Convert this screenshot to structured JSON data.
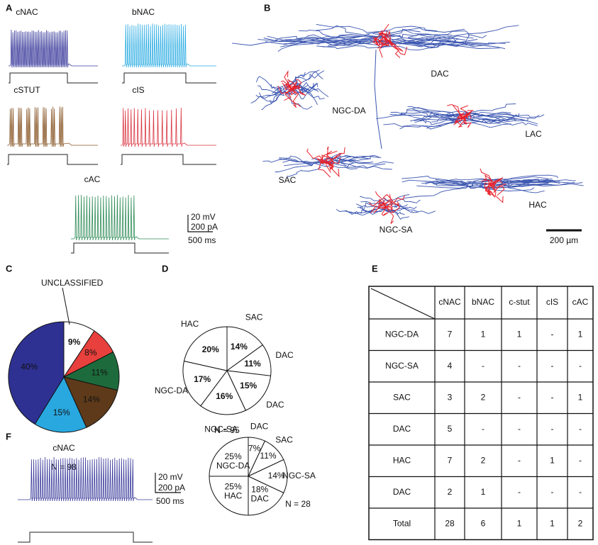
{
  "panel_letters": [
    "A",
    "B",
    "C",
    "D",
    "E",
    "F"
  ],
  "traces": {
    "labels": [
      "cNAC",
      "bNAC",
      "cSTUT",
      "cIS",
      "cAC"
    ],
    "scale": [
      "20 mV",
      "200 pA",
      "500 ms"
    ]
  },
  "morphologies": {
    "labels": [
      "DAC",
      "NGC-DA",
      "LAC",
      "SAC",
      "HAC",
      "NGC-SA"
    ],
    "scale": "200 µm"
  },
  "chart_data": [
    {
      "type": "pie",
      "categories": [
        "UNCLASSIFIED",
        null,
        null,
        null,
        null,
        null
      ],
      "values": [
        9,
        8,
        11,
        14,
        15,
        40
      ],
      "value_labels": [
        "9%",
        "8%",
        "11%",
        "14%",
        "15%",
        "40%"
      ],
      "colors": [
        "#ffffff",
        "#e8403c",
        "#1d6b3c",
        "#5e3a1a",
        "#29a8e0",
        "#2e3192"
      ],
      "annotation": "N = 98"
    },
    {
      "type": "pie",
      "categories": [
        "SAC",
        "DAC",
        "DAC",
        "NGC-SA",
        "NGC-DA",
        "HAC"
      ],
      "values": [
        14,
        11,
        15,
        16,
        17,
        20
      ],
      "value_labels": [
        "14%",
        "11%",
        "15%",
        "16%",
        "17%",
        "20%"
      ],
      "colors": [
        "#ffffff",
        "#ffffff",
        "#ffffff",
        "#ffffff",
        "#ffffff",
        "#ffffff"
      ],
      "annotation": "N = 95"
    },
    {
      "type": "pie",
      "categories": [
        "DAC",
        "SAC",
        "NGC-SA",
        "DAC",
        "HAC",
        "NGC-DA"
      ],
      "values": [
        7,
        11,
        14,
        18,
        25,
        25
      ],
      "value_labels": [
        "7%",
        "11%",
        "14%",
        "18%",
        "25%",
        "25%"
      ],
      "colors": [
        "#ffffff",
        "#ffffff",
        "#ffffff",
        "#ffffff",
        "#ffffff",
        "#ffffff"
      ],
      "annotation": "N = 28"
    }
  ],
  "table": {
    "columns": [
      "cNAC",
      "bNAC",
      "c-stut",
      "cIS",
      "cAC"
    ],
    "column_colors": [
      "#3b3b9c",
      "#29abe2",
      "#8b5a2b",
      "#e0403a",
      "#1a8a4a"
    ],
    "rows": [
      {
        "label": "NGC-DA",
        "cells": [
          7,
          1,
          1,
          "-",
          1
        ]
      },
      {
        "label": "NGC-SA",
        "cells": [
          4,
          "-",
          "-",
          "-",
          "-"
        ]
      },
      {
        "label": "SAC",
        "cells": [
          3,
          2,
          "-",
          "-",
          1
        ]
      },
      {
        "label": "DAC",
        "cells": [
          5,
          "-",
          "-",
          "-",
          "-"
        ]
      },
      {
        "label": "HAC",
        "cells": [
          7,
          2,
          "-",
          1,
          "-"
        ]
      },
      {
        "label": "DAC",
        "cells": [
          2,
          1,
          "-",
          "-",
          "-"
        ]
      },
      {
        "label": "Total",
        "cells": [
          28,
          6,
          1,
          1,
          2
        ]
      }
    ]
  },
  "f_trace": {
    "label": "cNAC",
    "scale": [
      "20 mV",
      "200 pA",
      "500 ms"
    ]
  }
}
